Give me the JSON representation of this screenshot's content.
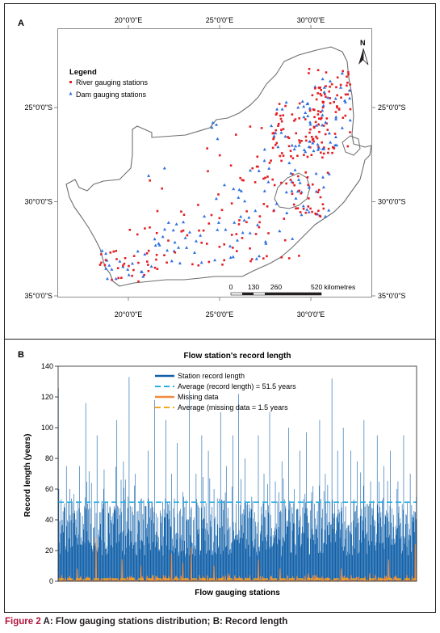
{
  "panel_a": {
    "label": "A",
    "x_ticks": [
      "20°0'0\"E",
      "25°0'0\"E",
      "30°0'0\"E"
    ],
    "x_tick_lon": [
      20,
      25,
      30
    ],
    "y_ticks": [
      "25°0'0\"S",
      "30°0'0\"S",
      "35°0'0\"S"
    ],
    "y_tick_lat": [
      -25,
      -30,
      -35
    ],
    "legend_title": "Legend",
    "legend_river": "River gauging stations",
    "legend_dam": "Dam gauging stations",
    "north_label": "N",
    "scale_values": [
      "0",
      "130",
      "260",
      "520 kilometres"
    ],
    "colors": {
      "river": "#e31e24",
      "dam": "#2e6fdf",
      "outline": "#6d6e70"
    }
  },
  "chart_data": {
    "type": "bar",
    "title": "Flow station's record length",
    "xlabel": "Flow gauging stations",
    "ylabel": "Record length (years)",
    "ylim": [
      0,
      140
    ],
    "yticks": [
      0,
      20,
      40,
      60,
      80,
      100,
      120,
      140
    ],
    "station_count": 760,
    "legend_position": "top-center",
    "series": [
      {
        "name": "Station record length",
        "kind": "bar",
        "color": "#0f5fa8",
        "peaks": [
          [
            0,
            126
          ],
          [
            1,
            60
          ],
          [
            8,
            40
          ],
          [
            17,
            75
          ],
          [
            24,
            60
          ],
          [
            34,
            46
          ],
          [
            45,
            75
          ],
          [
            58,
            116
          ],
          [
            70,
            64
          ],
          [
            82,
            95
          ],
          [
            96,
            60
          ],
          [
            110,
            48
          ],
          [
            124,
            105
          ],
          [
            138,
            78
          ],
          [
            150,
            133
          ],
          [
            163,
            70
          ],
          [
            176,
            54
          ],
          [
            190,
            85
          ],
          [
            204,
            118
          ],
          [
            216,
            46
          ],
          [
            228,
            105
          ],
          [
            240,
            70
          ],
          [
            252,
            90
          ],
          [
            266,
            55
          ],
          [
            278,
            124
          ],
          [
            292,
            70
          ],
          [
            304,
            95
          ],
          [
            318,
            85
          ],
          [
            330,
            60
          ],
          [
            344,
            110
          ],
          [
            356,
            75
          ],
          [
            370,
            95
          ],
          [
            382,
            122
          ],
          [
            396,
            80
          ],
          [
            410,
            55
          ],
          [
            424,
            95
          ],
          [
            436,
            70
          ],
          [
            448,
            110
          ],
          [
            460,
            65
          ],
          [
            474,
            78
          ],
          [
            488,
            100
          ],
          [
            500,
            60
          ],
          [
            512,
            85
          ],
          [
            526,
            97
          ],
          [
            540,
            62
          ],
          [
            554,
            105
          ],
          [
            566,
            70
          ],
          [
            580,
            132
          ],
          [
            592,
            85
          ],
          [
            604,
            100
          ],
          [
            620,
            85
          ],
          [
            634,
            78
          ],
          [
            648,
            105
          ],
          [
            662,
            65
          ],
          [
            676,
            95
          ],
          [
            690,
            75
          ],
          [
            704,
            85
          ],
          [
            718,
            60
          ],
          [
            732,
            95
          ],
          [
            746,
            70
          ],
          [
            759,
            55
          ]
        ]
      },
      {
        "name": "Average (record length) = 51.5 years",
        "kind": "line",
        "color": "#2bb0e6",
        "value": 51.5
      },
      {
        "name": "Missing data",
        "kind": "line",
        "color": "#f08b3e",
        "peaks": [
          [
            40,
            8
          ],
          [
            80,
            28
          ],
          [
            135,
            14
          ],
          [
            175,
            10
          ],
          [
            240,
            18
          ],
          [
            264,
            12
          ],
          [
            282,
            22
          ],
          [
            330,
            10
          ],
          [
            360,
            5
          ],
          [
            424,
            14
          ],
          [
            470,
            8
          ],
          [
            530,
            5
          ],
          [
            600,
            8
          ],
          [
            660,
            5
          ],
          [
            700,
            14
          ],
          [
            757,
            24
          ]
        ]
      },
      {
        "name": "Average (missing data = 1.5 years",
        "kind": "line",
        "color": "#f7a51b",
        "value": 1.5
      }
    ]
  },
  "panel_b_label": "B",
  "caption": {
    "label": "Figure 2",
    "text": "A: Flow gauging stations distribution; B: Record length"
  }
}
